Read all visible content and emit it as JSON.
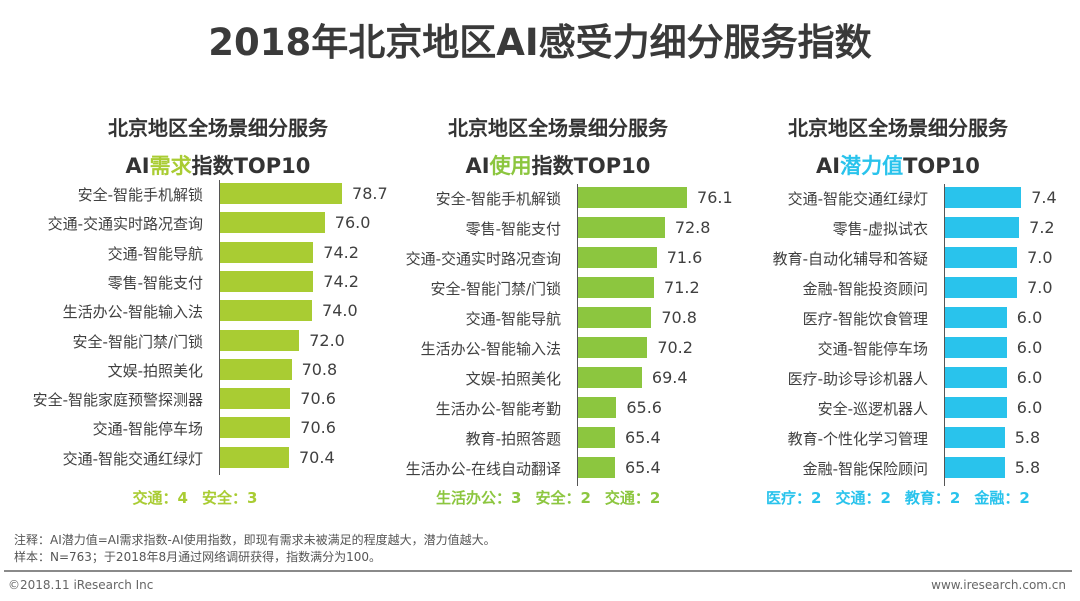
{
  "title": "2018年北京地区AI感受力细分服务指数",
  "colors": {
    "demand": "#a9cc33",
    "usage": "#8cc63f",
    "potential": "#29c3ec",
    "text": "#404040"
  },
  "chart_data": [
    {
      "type": "bar",
      "orientation": "horizontal",
      "title_line1": "北京地区全场景细分服务",
      "title_prefix": "AI",
      "title_highlight": "需求",
      "title_suffix": "指数TOP10",
      "categories": [
        "安全-智能手机解锁",
        "交通-交通实时路况查询",
        "交通-智能导航",
        "零售-智能支付",
        "生活办公-智能输入法",
        "安全-智能门禁/门锁",
        "文娱-拍照美化",
        "安全-智能家庭预警探测器",
        "交通-智能停车场",
        "交通-智能交通红绿灯"
      ],
      "values": [
        78.7,
        76.0,
        74.2,
        74.2,
        74.0,
        72.0,
        70.8,
        70.6,
        70.6,
        70.4
      ],
      "value_labels": [
        "78.7",
        "76.0",
        "74.2",
        "74.2",
        "74.0",
        "72.0",
        "70.8",
        "70.6",
        "70.6",
        "70.4"
      ],
      "summary": [
        "交通：4",
        "安全：3"
      ],
      "color": "#a9cc33"
    },
    {
      "type": "bar",
      "orientation": "horizontal",
      "title_line1": "北京地区全场景细分服务",
      "title_prefix": "AI",
      "title_highlight": "使用",
      "title_suffix": "指数TOP10",
      "categories": [
        "安全-智能手机解锁",
        "零售-智能支付",
        "交通-交通实时路况查询",
        "安全-智能门禁/门锁",
        "交通-智能导航",
        "生活办公-智能输入法",
        "文娱-拍照美化",
        "生活办公-智能考勤",
        "教育-拍照答题",
        "生活办公-在线自动翻译"
      ],
      "values": [
        76.1,
        72.8,
        71.6,
        71.2,
        70.8,
        70.2,
        69.4,
        65.6,
        65.4,
        65.4
      ],
      "value_labels": [
        "76.1",
        "72.8",
        "71.6",
        "71.2",
        "70.8",
        "70.2",
        "69.4",
        "65.6",
        "65.4",
        "65.4"
      ],
      "summary": [
        "生活办公：3",
        "安全：2",
        "交通：2"
      ],
      "color": "#8cc63f"
    },
    {
      "type": "bar",
      "orientation": "horizontal",
      "title_line1": "北京地区全场景细分服务",
      "title_prefix": "AI",
      "title_highlight": "潜力值",
      "title_suffix": "TOP10",
      "categories": [
        "交通-智能交通红绿灯",
        "零售-虚拟试衣",
        "教育-自动化辅导和答疑",
        "金融-智能投资顾问",
        "医疗-智能饮食管理",
        "交通-智能停车场",
        "医疗-助诊导诊机器人",
        "安全-巡逻机器人",
        "教育-个性化学习管理",
        "金融-智能保险顾问"
      ],
      "values": [
        7.4,
        7.2,
        7.0,
        7.0,
        6.0,
        6.0,
        6.0,
        6.0,
        5.8,
        5.8
      ],
      "value_labels": [
        "7.4",
        "7.2",
        "7.0",
        "7.0",
        "6.0",
        "6.0",
        "6.0",
        "6.0",
        "5.8",
        "5.8"
      ],
      "summary": [
        "医疗：2",
        "交通：2",
        "教育：2",
        "金融：2"
      ],
      "color": "#29c3ec"
    }
  ],
  "notes": {
    "line1": "注释：AI潜力值=AI需求指数-AI使用指数，即现有需求未被满足的程度越大，潜力值越大。",
    "line2": "样本：N=763；于2018年8月通过网络调研获得，指数满分为100。"
  },
  "footer": {
    "copyright": "©2018.11 iResearch Inc",
    "website": "www.iresearch.com.cn"
  }
}
